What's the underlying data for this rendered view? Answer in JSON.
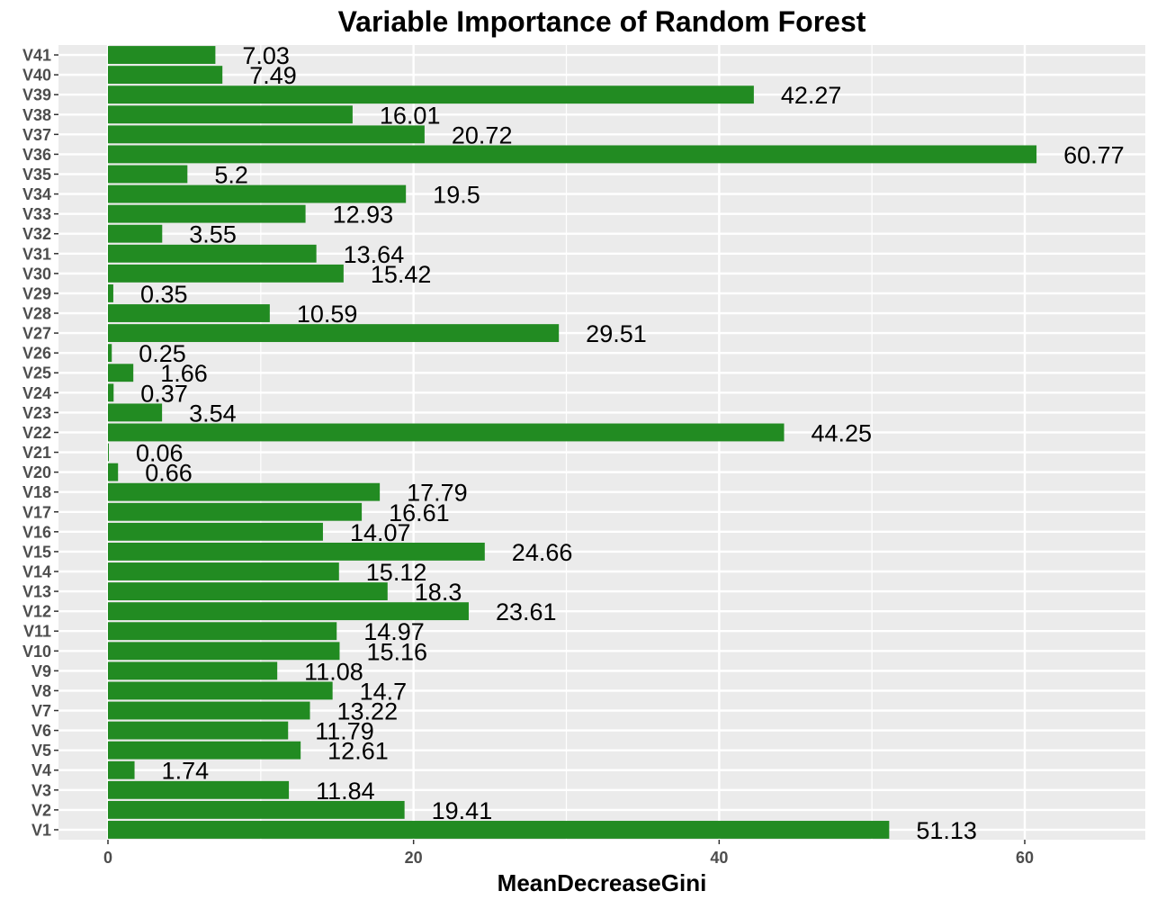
{
  "chart_data": {
    "type": "bar",
    "orientation": "horizontal",
    "title": "Variable Importance of Random Forest",
    "xlabel": "MeanDecreaseGini",
    "ylabel": "",
    "xlim": [
      -3.04,
      67.82
    ],
    "xticks": [
      0,
      20,
      40,
      60
    ],
    "grid": true,
    "bar_color": "#228B22",
    "panel_color": "#EBEBEB",
    "grid_color": "#FFFFFF",
    "categories": [
      "V1",
      "V2",
      "V3",
      "V4",
      "V5",
      "V6",
      "V7",
      "V8",
      "V9",
      "V10",
      "V11",
      "V12",
      "V13",
      "V14",
      "V15",
      "V16",
      "V17",
      "V18",
      "V20",
      "V21",
      "V22",
      "V23",
      "V24",
      "V25",
      "V26",
      "V27",
      "V28",
      "V29",
      "V30",
      "V31",
      "V32",
      "V33",
      "V34",
      "V35",
      "V36",
      "V37",
      "V38",
      "V39",
      "V40",
      "V41"
    ],
    "values": [
      51.13,
      19.41,
      11.84,
      1.74,
      12.61,
      11.79,
      13.22,
      14.7,
      11.08,
      15.16,
      14.97,
      23.61,
      18.3,
      15.12,
      24.66,
      14.07,
      16.61,
      17.79,
      0.66,
      0.06,
      44.25,
      3.54,
      0.37,
      1.66,
      0.25,
      29.51,
      10.59,
      0.35,
      15.42,
      13.64,
      3.55,
      12.93,
      19.5,
      5.2,
      60.77,
      20.72,
      16.01,
      42.27,
      7.49,
      7.03
    ],
    "labels": [
      "51.13",
      "19.41",
      "11.84",
      "1.74",
      "12.61",
      "11.79",
      "13.22",
      "14.7",
      "11.08",
      "15.16",
      "14.97",
      "23.61",
      "18.3",
      "15.12",
      "24.66",
      "14.07",
      "16.61",
      "17.79",
      "0.66",
      "0.06",
      "44.25",
      "3.54",
      "0.37",
      "1.66",
      "0.25",
      "29.51",
      "10.59",
      "0.35",
      "15.42",
      "13.64",
      "3.55",
      "12.93",
      "19.5",
      "5.2",
      "60.77",
      "20.72",
      "16.01",
      "42.27",
      "7.49",
      "7.03"
    ]
  }
}
